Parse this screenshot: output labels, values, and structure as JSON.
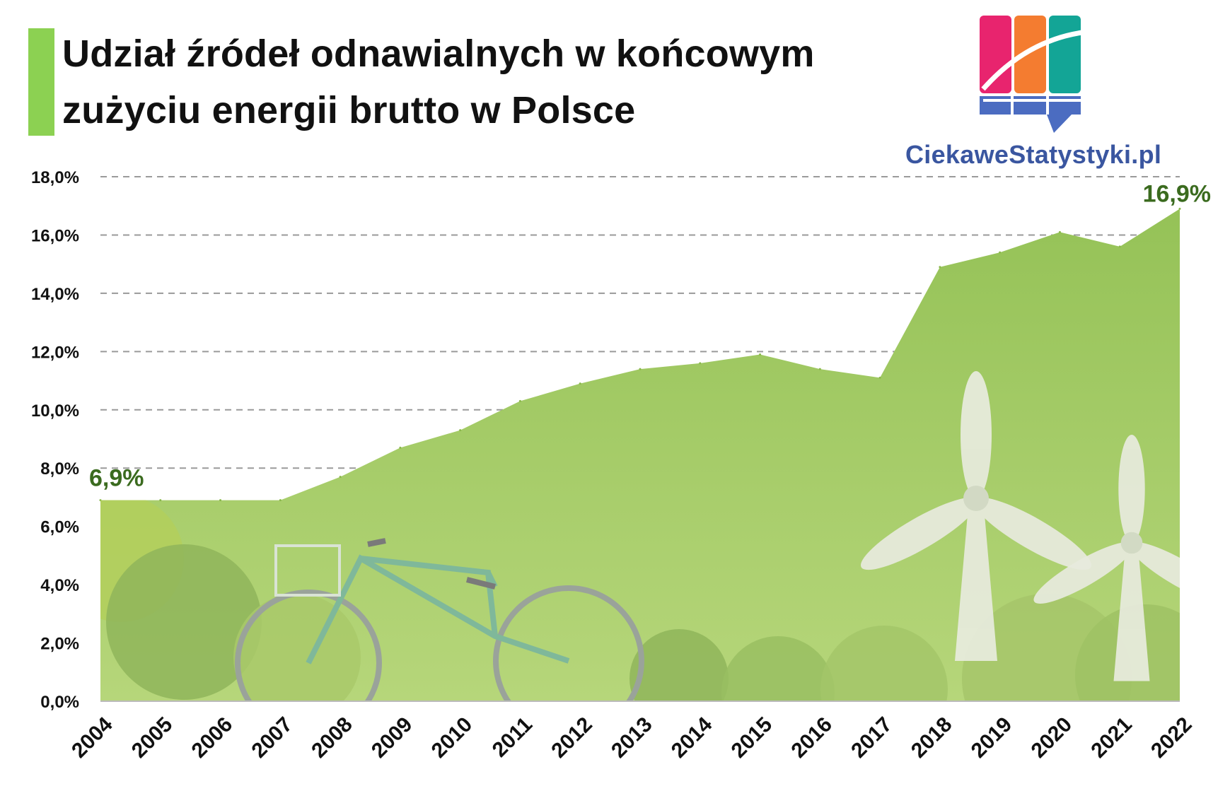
{
  "title_lines": [
    "Udział źródeł odnawialnych w końcowym",
    "zużyciu energii brutto w Polsce"
  ],
  "logo": {
    "text": "CiekaweStatystyki.pl",
    "colors": [
      "#e8246e",
      "#f47c30",
      "#13a596",
      "#4b6cc1"
    ]
  },
  "colors": {
    "accent_bar": "#8cd152",
    "area_top": "#96c55a",
    "area_bottom": "#b9d97a",
    "label": "#3b6b1f",
    "grid": "#9a9a9a"
  },
  "chart_data": {
    "type": "area",
    "title": "Udział źródeł odnawialnych w końcowym zużyciu energii brutto w Polsce",
    "x": [
      "2004",
      "2005",
      "2006",
      "2007",
      "2008",
      "2009",
      "2010",
      "2011",
      "2012",
      "2013",
      "2014",
      "2015",
      "2016",
      "2017",
      "2018",
      "2019",
      "2020",
      "2021",
      "2022"
    ],
    "series": [
      {
        "values": [
          6.9,
          6.9,
          6.9,
          6.9,
          7.7,
          8.7,
          9.3,
          10.3,
          10.9,
          11.4,
          11.6,
          11.9,
          11.4,
          11.1,
          14.9,
          15.4,
          16.1,
          15.6,
          16.9
        ]
      }
    ],
    "ylim": [
      0,
      18
    ],
    "yticks": [
      0,
      2,
      4,
      6,
      8,
      10,
      12,
      14,
      16,
      18
    ],
    "ytick_labels": [
      "0,0%",
      "2,0%",
      "4,0%",
      "6,0%",
      "8,0%",
      "10,0%",
      "12,0%",
      "14,0%",
      "16,0%",
      "18,0%"
    ],
    "data_labels": [
      {
        "index": 0,
        "text": "6,9%"
      },
      {
        "index": 18,
        "text": "16,9%"
      }
    ],
    "grid": true,
    "legend": "none"
  }
}
